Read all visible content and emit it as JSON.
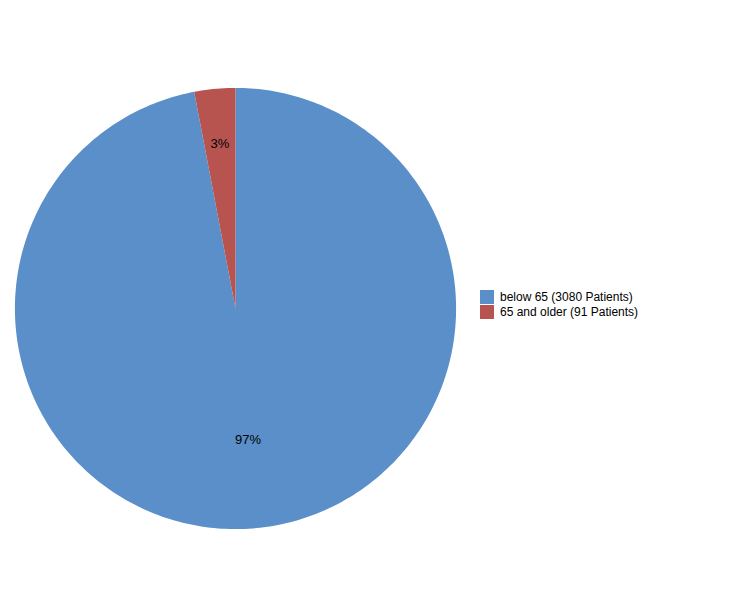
{
  "chart_data": {
    "type": "pie",
    "categories": [
      "below 65 (3080 Patients)",
      "65 and older (91 Patients)"
    ],
    "values": [
      97,
      3
    ],
    "value_labels": [
      "97%",
      "3%"
    ],
    "colors": [
      "#5b8fc9",
      "#b85450"
    ],
    "data_labels": true,
    "legend": "right"
  }
}
